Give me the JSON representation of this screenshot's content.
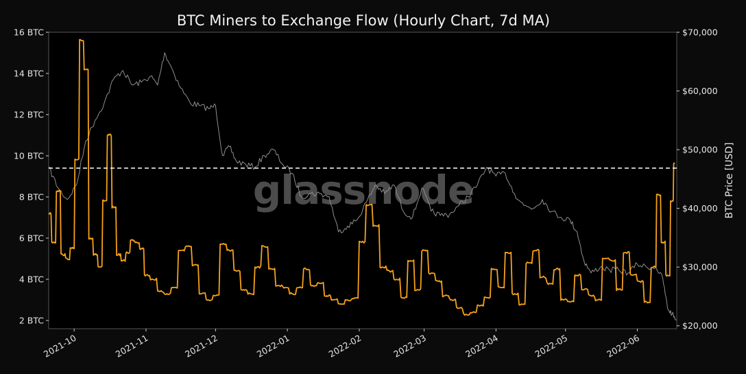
{
  "chart_data": {
    "type": "line",
    "title": "BTC Miners to Exchange Flow (Hourly Chart, 7d MA)",
    "watermark": "glassnode",
    "x_range": [
      "2021-09-20",
      "2022-06-18"
    ],
    "x_ticks": [
      "2021-10",
      "2021-11",
      "2021-12",
      "2022-01",
      "2022-02",
      "2022-03",
      "2022-04",
      "2022-05",
      "2022-06"
    ],
    "x_tick_dates": [
      "2021-10-01",
      "2021-11-01",
      "2021-12-01",
      "2022-01-01",
      "2022-02-01",
      "2022-03-01",
      "2022-04-01",
      "2022-05-01",
      "2022-06-01"
    ],
    "y_left": {
      "label": "",
      "range": [
        1.6,
        16
      ],
      "ticks": [
        2,
        4,
        6,
        8,
        10,
        12,
        14,
        16
      ],
      "tick_labels": [
        "2 BTC",
        "4 BTC",
        "6 BTC",
        "8 BTC",
        "10 BTC",
        "12 BTC",
        "14 BTC",
        "16 BTC"
      ]
    },
    "y_right": {
      "label": "BTC Price [USD]",
      "range": [
        19500,
        70000
      ],
      "ticks": [
        20000,
        30000,
        40000,
        50000,
        60000,
        70000
      ],
      "tick_labels": [
        "$20,000",
        "$30,000",
        "$40,000",
        "$50,000",
        "$60,000",
        "$70,000"
      ]
    },
    "reference_line": {
      "value": 9.4,
      "axis": "left",
      "style": "dashed",
      "color": "#ffffff"
    },
    "grid": false,
    "series": [
      {
        "axis": "left",
        "color": "#f7a21b",
        "x": [
          "2021-09-20",
          "2021-09-22",
          "2021-09-24",
          "2021-09-26",
          "2021-09-28",
          "2021-09-30",
          "2021-10-02",
          "2021-10-04",
          "2021-10-06",
          "2021-10-08",
          "2021-10-10",
          "2021-10-12",
          "2021-10-14",
          "2021-10-16",
          "2021-10-18",
          "2021-10-20",
          "2021-10-22",
          "2021-10-24",
          "2021-10-26",
          "2021-10-28",
          "2021-10-30",
          "2021-11-01",
          "2021-11-04",
          "2021-11-07",
          "2021-11-10",
          "2021-11-13",
          "2021-11-16",
          "2021-11-19",
          "2021-11-22",
          "2021-11-25",
          "2021-11-28",
          "2021-12-01",
          "2021-12-04",
          "2021-12-07",
          "2021-12-10",
          "2021-12-13",
          "2021-12-16",
          "2021-12-19",
          "2021-12-22",
          "2021-12-25",
          "2021-12-28",
          "2021-12-31",
          "2022-01-03",
          "2022-01-06",
          "2022-01-09",
          "2022-01-12",
          "2022-01-15",
          "2022-01-18",
          "2022-01-21",
          "2022-01-24",
          "2022-01-27",
          "2022-01-30",
          "2022-02-02",
          "2022-02-05",
          "2022-02-08",
          "2022-02-11",
          "2022-02-14",
          "2022-02-17",
          "2022-02-20",
          "2022-02-23",
          "2022-02-26",
          "2022-03-01",
          "2022-03-04",
          "2022-03-07",
          "2022-03-10",
          "2022-03-13",
          "2022-03-16",
          "2022-03-19",
          "2022-03-22",
          "2022-03-25",
          "2022-03-28",
          "2022-03-31",
          "2022-04-03",
          "2022-04-06",
          "2022-04-09",
          "2022-04-12",
          "2022-04-15",
          "2022-04-18",
          "2022-04-21",
          "2022-04-24",
          "2022-04-27",
          "2022-04-30",
          "2022-05-03",
          "2022-05-06",
          "2022-05-09",
          "2022-05-12",
          "2022-05-15",
          "2022-05-18",
          "2022-05-21",
          "2022-05-24",
          "2022-05-27",
          "2022-05-30",
          "2022-06-02",
          "2022-06-05",
          "2022-06-08",
          "2022-06-10",
          "2022-06-12",
          "2022-06-14",
          "2022-06-16",
          "2022-06-17"
        ],
        "values": [
          7.2,
          5.8,
          8.3,
          5.2,
          5.0,
          5.5,
          9.8,
          15.6,
          14.2,
          6.0,
          5.2,
          4.6,
          7.8,
          11.0,
          7.5,
          5.2,
          4.9,
          5.3,
          5.9,
          5.8,
          5.5,
          4.2,
          4.0,
          3.4,
          3.3,
          3.6,
          5.4,
          5.6,
          4.7,
          3.3,
          3.0,
          3.2,
          5.7,
          5.4,
          4.4,
          3.5,
          3.3,
          4.6,
          5.6,
          4.5,
          3.7,
          3.6,
          3.3,
          3.6,
          4.5,
          3.7,
          3.8,
          3.2,
          3.0,
          2.8,
          3.0,
          3.1,
          5.8,
          7.6,
          6.6,
          4.6,
          4.4,
          4.0,
          3.1,
          4.9,
          3.5,
          5.4,
          4.3,
          3.9,
          3.2,
          3.0,
          2.6,
          2.3,
          2.4,
          2.7,
          3.1,
          4.5,
          3.6,
          5.3,
          3.3,
          2.8,
          4.8,
          5.4,
          4.1,
          3.8,
          4.5,
          3.0,
          2.9,
          4.2,
          3.5,
          3.2,
          3.0,
          5.0,
          4.9,
          3.5,
          5.3,
          4.2,
          3.9,
          2.9,
          4.6,
          8.1,
          5.8,
          4.2,
          7.8,
          9.6
        ]
      },
      {
        "axis": "right",
        "color": "#8f8f8f",
        "x": [
          "2021-09-20",
          "2021-09-24",
          "2021-09-28",
          "2021-10-02",
          "2021-10-06",
          "2021-10-10",
          "2021-10-14",
          "2021-10-18",
          "2021-10-22",
          "2021-10-26",
          "2021-10-30",
          "2021-11-03",
          "2021-11-06",
          "2021-11-09",
          "2021-11-12",
          "2021-11-16",
          "2021-11-20",
          "2021-11-24",
          "2021-11-28",
          "2021-12-01",
          "2021-12-04",
          "2021-12-07",
          "2021-12-10",
          "2021-12-14",
          "2021-12-18",
          "2021-12-22",
          "2021-12-26",
          "2021-12-30",
          "2022-01-03",
          "2022-01-07",
          "2022-01-11",
          "2022-01-15",
          "2022-01-19",
          "2022-01-23",
          "2022-01-27",
          "2022-01-31",
          "2022-02-04",
          "2022-02-08",
          "2022-02-12",
          "2022-02-16",
          "2022-02-20",
          "2022-02-24",
          "2022-02-28",
          "2022-03-04",
          "2022-03-08",
          "2022-03-12",
          "2022-03-16",
          "2022-03-20",
          "2022-03-24",
          "2022-03-28",
          "2022-04-01",
          "2022-04-05",
          "2022-04-09",
          "2022-04-13",
          "2022-04-17",
          "2022-04-21",
          "2022-04-25",
          "2022-04-29",
          "2022-05-03",
          "2022-05-06",
          "2022-05-09",
          "2022-05-12",
          "2022-05-16",
          "2022-05-20",
          "2022-05-24",
          "2022-05-28",
          "2022-06-01",
          "2022-06-05",
          "2022-06-09",
          "2022-06-12",
          "2022-06-14",
          "2022-06-16",
          "2022-06-18"
        ],
        "values": [
          47000,
          43500,
          41500,
          44000,
          51500,
          55000,
          58000,
          62000,
          63500,
          61000,
          61500,
          62500,
          61000,
          66500,
          64000,
          60500,
          58000,
          57500,
          57000,
          57500,
          49000,
          50500,
          48000,
          47500,
          47000,
          49000,
          50000,
          47500,
          46000,
          42000,
          42500,
          42500,
          42000,
          36000,
          37000,
          38000,
          41000,
          44000,
          42500,
          44000,
          39500,
          38500,
          43500,
          39500,
          38800,
          39000,
          40500,
          42000,
          44000,
          47000,
          45500,
          46000,
          42500,
          40500,
          40000,
          41500,
          39500,
          38500,
          38000,
          36000,
          31000,
          29000,
          30000,
          29500,
          29500,
          29000,
          30500,
          30000,
          30000,
          28000,
          23000,
          22000,
          21000
        ]
      }
    ]
  }
}
